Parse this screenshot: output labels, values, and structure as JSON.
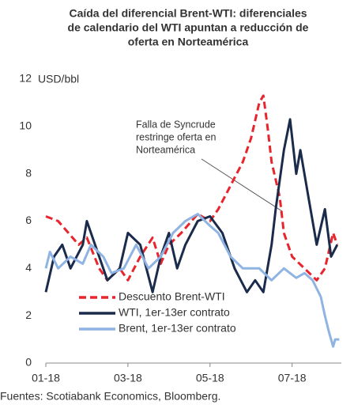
{
  "chart_data": {
    "type": "line",
    "title": [
      "Caída del diferencial Brent-WTI: diferenciales",
      "de calendario del WTI apuntan a reducción de",
      "oferta en Norteamérica"
    ],
    "ylabel": "USD/bbl",
    "source": "Fuentes: Scotiabank Economics, Bloomberg.",
    "annotation": [
      "Falla de Syncrude",
      "restringe oferta en",
      "Norteamérica"
    ],
    "xlim": [
      0,
      7.2
    ],
    "xticks": [
      {
        "value": 0,
        "label": "01-18"
      },
      {
        "value": 2,
        "label": "03-18"
      },
      {
        "value": 4,
        "label": "05-18"
      },
      {
        "value": 6,
        "label": "07-18"
      }
    ],
    "ylim": [
      0,
      12
    ],
    "yticks": [
      0,
      2,
      4,
      6,
      8,
      10,
      12
    ],
    "grid": false,
    "legend": "lower left",
    "series": [
      {
        "name": "Descuento Brent-WTI",
        "color": "#e8242c",
        "dash": true,
        "x": [
          0,
          0.3,
          0.5,
          0.8,
          1.0,
          1.3,
          1.5,
          1.8,
          2.0,
          2.3,
          2.6,
          2.8,
          3.0,
          3.3,
          3.7,
          4.0,
          4.2,
          4.5,
          4.8,
          5.0,
          5.2,
          5.3,
          5.4,
          5.5,
          5.7,
          5.8,
          6.0,
          6.3,
          6.6,
          6.8,
          7.0,
          7.1
        ],
        "values": [
          6.2,
          6.0,
          5.6,
          5.0,
          5.3,
          4.0,
          3.5,
          4.0,
          3.5,
          4.5,
          5.3,
          4.2,
          5.0,
          5.5,
          6.3,
          6.0,
          6.5,
          7.5,
          8.5,
          9.5,
          11.0,
          11.3,
          10.0,
          8.5,
          7.0,
          5.5,
          4.5,
          4.0,
          3.5,
          4.0,
          5.5,
          5.0
        ]
      },
      {
        "name": "WTI, 1er-13er contrato",
        "color": "#1a2b4c",
        "dash": false,
        "x": [
          0,
          0.2,
          0.4,
          0.6,
          0.9,
          1.0,
          1.2,
          1.5,
          1.8,
          2.0,
          2.3,
          2.6,
          2.8,
          3.0,
          3.2,
          3.4,
          3.7,
          4.0,
          4.3,
          4.6,
          4.9,
          5.1,
          5.3,
          5.5,
          5.6,
          5.8,
          5.95,
          6.1,
          6.2,
          6.4,
          6.6,
          6.8,
          6.95,
          7.1
        ],
        "values": [
          3.0,
          4.5,
          5.0,
          4.0,
          5.0,
          6.0,
          5.0,
          3.5,
          4.0,
          5.5,
          5.0,
          3.0,
          4.5,
          5.5,
          4.0,
          5.0,
          6.0,
          6.2,
          5.5,
          4.0,
          3.0,
          3.5,
          3.0,
          5.0,
          6.5,
          9.0,
          10.3,
          8.0,
          9.0,
          7.0,
          5.0,
          6.5,
          4.5,
          5.0
        ]
      },
      {
        "name": "Brent, 1er-13er contrato",
        "color": "#8fb4e3",
        "dash": false,
        "x": [
          0,
          0.1,
          0.3,
          0.6,
          0.9,
          1.1,
          1.4,
          1.6,
          1.9,
          2.2,
          2.5,
          2.8,
          3.1,
          3.4,
          3.7,
          4.0,
          4.2,
          4.5,
          4.8,
          5.2,
          5.5,
          5.8,
          6.1,
          6.3,
          6.5,
          6.7,
          6.8,
          6.9,
          7.0,
          7.05,
          7.15
        ],
        "values": [
          4.0,
          4.7,
          4.0,
          4.5,
          4.2,
          5.0,
          4.5,
          3.8,
          4.0,
          5.0,
          4.0,
          4.5,
          5.5,
          6.0,
          6.3,
          5.8,
          5.5,
          4.5,
          4.0,
          4.0,
          3.5,
          4.0,
          3.6,
          3.8,
          3.5,
          2.8,
          2.0,
          1.3,
          0.7,
          1.0,
          1.0
        ]
      }
    ]
  }
}
